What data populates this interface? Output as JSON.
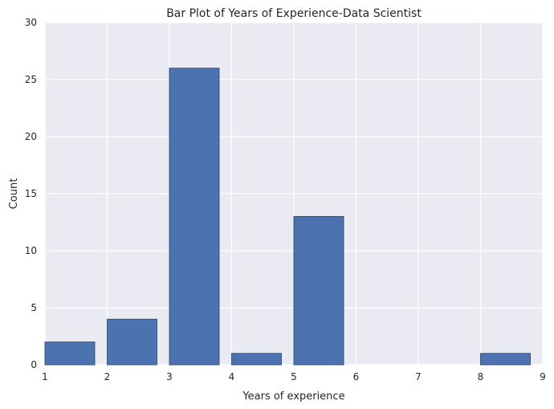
{
  "chart_data": {
    "type": "bar",
    "title": "Bar Plot of Years of Experience-Data Scientist",
    "xlabel": "Years of experience",
    "ylabel": "Count",
    "xlim": [
      1,
      9
    ],
    "ylim": [
      0,
      30
    ],
    "xticks": [
      1,
      2,
      3,
      4,
      5,
      6,
      7,
      8,
      9
    ],
    "yticks": [
      0,
      5,
      10,
      15,
      20,
      25,
      30
    ],
    "bar_width": 0.8,
    "bars": [
      {
        "x": 1,
        "value": 2
      },
      {
        "x": 2,
        "value": 4
      },
      {
        "x": 3,
        "value": 26
      },
      {
        "x": 4,
        "value": 1
      },
      {
        "x": 5,
        "value": 13
      },
      {
        "x": 8,
        "value": 1
      }
    ],
    "grid": true,
    "colors": {
      "bar": "#4c72b0",
      "bar_edge": "#2d3f66",
      "plot_background": "#eaeaf2",
      "grid": "#ffffff"
    }
  }
}
